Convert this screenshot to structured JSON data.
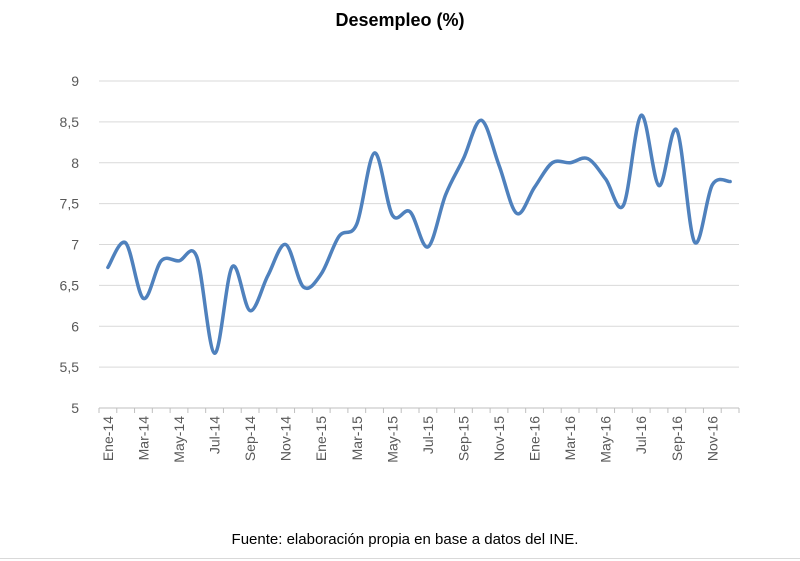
{
  "chart_data": {
    "type": "line",
    "title": "Desempleo (%)",
    "xlabel": "",
    "ylabel": "",
    "ylim": [
      5,
      9
    ],
    "yticks": [
      "5",
      "5,5",
      "6",
      "6,5",
      "7",
      "7,5",
      "8",
      "8,5",
      "9"
    ],
    "grid": true,
    "x_tick_labels": [
      "Ene-14",
      "Mar-14",
      "May-14",
      "Jul-14",
      "Sep-14",
      "Nov-14",
      "Ene-15",
      "Mar-15",
      "May-15",
      "Jul-15",
      "Sep-15",
      "Nov-15",
      "Ene-16",
      "Mar-16",
      "May-16",
      "Jul-16",
      "Sep-16",
      "Nov-16"
    ],
    "series": [
      {
        "color": "#4f81bd",
        "x": [
          "Ene-14",
          "Feb-14",
          "Mar-14",
          "Abr-14",
          "May-14",
          "Jun-14",
          "Jul-14",
          "Ago-14",
          "Sep-14",
          "Oct-14",
          "Nov-14",
          "Dic-14",
          "Ene-15",
          "Feb-15",
          "Mar-15",
          "Abr-15",
          "May-15",
          "Jun-15",
          "Jul-15",
          "Ago-15",
          "Sep-15",
          "Oct-15",
          "Nov-15",
          "Dic-15",
          "Ene-16",
          "Feb-16",
          "Mar-16",
          "Abr-16",
          "May-16",
          "Jun-16",
          "Jul-16",
          "Ago-16",
          "Sep-16",
          "Oct-16",
          "Nov-16",
          "Dic-16"
        ],
        "values": [
          6.72,
          7.02,
          6.34,
          6.8,
          6.8,
          6.85,
          5.67,
          6.73,
          6.19,
          6.62,
          7.0,
          6.48,
          6.64,
          7.1,
          7.25,
          8.12,
          7.36,
          7.4,
          6.97,
          7.61,
          8.05,
          8.52,
          7.97,
          7.38,
          7.7,
          8.0,
          8.0,
          8.05,
          7.8,
          7.48,
          8.58,
          7.72,
          8.4,
          7.03,
          7.73,
          7.77
        ]
      }
    ]
  },
  "footer": {
    "source": "Fuente: elaboración propia en base a datos del INE."
  }
}
